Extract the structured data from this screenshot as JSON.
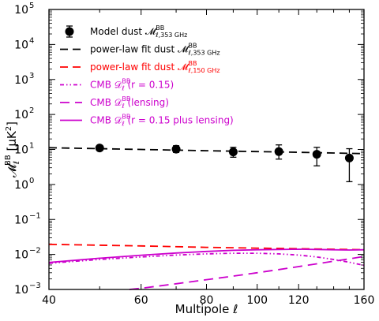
{
  "chart_data": {
    "type": "scatter",
    "title": "",
    "xlabel": "Multipole ℓ",
    "ylabel_main": "𝓜",
    "ylabel_sub": "ℓ",
    "ylabel_sup": "BB",
    "ylabel_unit": " [μK",
    "ylabel_unit_sup": "2",
    "ylabel_close": "]",
    "xscale": "log",
    "yscale": "log",
    "xlim": [
      40,
      160
    ],
    "ylim": [
      0.001,
      100000
    ],
    "grid": false,
    "legend_position": "upper-left",
    "x_ticks": [
      {
        "value": 40,
        "label": "40"
      },
      {
        "value": 60,
        "label": "60"
      },
      {
        "value": 80,
        "label": "80"
      },
      {
        "value": 100,
        "label": "100"
      },
      {
        "value": 120,
        "label": "120"
      },
      {
        "value": 160,
        "label": "160"
      }
    ],
    "y_ticks": [
      {
        "value": 0.001,
        "base": "10",
        "exp": "−3"
      },
      {
        "value": 0.01,
        "base": "10",
        "exp": "−2"
      },
      {
        "value": 0.1,
        "base": "10",
        "exp": "−1"
      },
      {
        "value": 1,
        "base": "10",
        "exp": "0"
      },
      {
        "value": 10,
        "base": "10",
        "exp": "1"
      },
      {
        "value": 100,
        "base": "10",
        "exp": "2"
      },
      {
        "value": 1000,
        "base": "10",
        "exp": "3"
      },
      {
        "value": 10000,
        "base": "10",
        "exp": "4"
      },
      {
        "value": 100000,
        "base": "10",
        "exp": "5"
      }
    ],
    "series": [
      {
        "name": "Model dust 𝓜^BB_ℓ,353 GHz",
        "legend_main": "Model dust 𝓜",
        "legend_sup": "BB",
        "legend_sub": "ℓ,353 GHz",
        "legend_tail": "",
        "kind": "errorbar",
        "color": "#000000",
        "points": [
          {
            "x": 50,
            "y": 11.0,
            "lo": 9.3,
            "hi": 13.0
          },
          {
            "x": 70,
            "y": 10.2,
            "lo": 8.2,
            "hi": 12.8
          },
          {
            "x": 90,
            "y": 8.5,
            "lo": 6.0,
            "hi": 11.5
          },
          {
            "x": 110,
            "y": 8.7,
            "lo": 5.3,
            "hi": 13.5
          },
          {
            "x": 130,
            "y": 7.3,
            "lo": 3.4,
            "hi": 11.5
          },
          {
            "x": 150,
            "y": 5.7,
            "lo": 1.2,
            "hi": 10.5
          }
        ]
      },
      {
        "name": "power-law fit dust 𝓜^BB_ℓ,353 GHz",
        "legend_main": "power-law fit dust 𝓜",
        "legend_sup": "BB",
        "legend_sub": "ℓ,353 GHz",
        "legend_tail": "",
        "kind": "line",
        "dash": "10,6",
        "color": "#000000",
        "x": [
          40,
          60,
          80,
          100,
          120,
          140,
          160
        ],
        "y": [
          11.2,
          10.0,
          9.2,
          8.7,
          8.3,
          7.9,
          7.6
        ]
      },
      {
        "name": "power-law fit dust 𝓜^BB_ℓ,150 GHz",
        "legend_main": "power-law fit dust 𝓜",
        "legend_sup": "BB",
        "legend_sub": "ℓ,150 GHz",
        "legend_tail": "",
        "kind": "line",
        "dash": "10,6",
        "color": "#ff0000",
        "x": [
          40,
          60,
          80,
          100,
          120,
          140,
          160
        ],
        "y": [
          0.0195,
          0.0175,
          0.016,
          0.0152,
          0.0146,
          0.0141,
          0.0137
        ]
      },
      {
        "name": "CMB 𝒟^BB_ℓ (r = 0.15)",
        "legend_main": "CMB 𝒟",
        "legend_sup": "BB",
        "legend_sub": "ℓ",
        "legend_tail": " (r = 0.15)",
        "kind": "line",
        "dash": "5,3,1.5,3,1.5,3",
        "color": "#cc00cc",
        "x": [
          40,
          50,
          60,
          70,
          80,
          90,
          100,
          110,
          120,
          130,
          140,
          150,
          160
        ],
        "y": [
          0.0056,
          0.0072,
          0.0085,
          0.0096,
          0.0104,
          0.0108,
          0.0108,
          0.0104,
          0.0096,
          0.0085,
          0.0072,
          0.006,
          0.0049
        ]
      },
      {
        "name": "CMB 𝒟^BB_ℓ (lensing)",
        "legend_main": "CMB 𝒟",
        "legend_sup": "BB",
        "legend_sub": "ℓ",
        "legend_tail": " (lensing)",
        "kind": "line",
        "dash": "12,7",
        "color": "#cc00cc",
        "x": [
          57,
          60,
          70,
          80,
          90,
          100,
          110,
          120,
          130,
          140,
          150,
          160
        ],
        "y": [
          0.001,
          0.00108,
          0.00145,
          0.0019,
          0.0024,
          0.003,
          0.0037,
          0.0045,
          0.0054,
          0.0064,
          0.0075,
          0.0088
        ]
      },
      {
        "name": "CMB 𝒟^BB_ℓ (r = 0.15 plus lensing)",
        "legend_main": "CMB 𝒟",
        "legend_sup": "BB",
        "legend_sub": "ℓ",
        "legend_tail": " (r = 0.15 plus lensing)",
        "kind": "line",
        "dash": "",
        "color": "#cc00cc",
        "x": [
          40,
          50,
          60,
          70,
          80,
          90,
          100,
          110,
          120,
          130,
          140,
          150,
          160
        ],
        "y": [
          0.0059,
          0.0078,
          0.0095,
          0.011,
          0.0122,
          0.0131,
          0.0136,
          0.0139,
          0.0141,
          0.0139,
          0.0136,
          0.0134,
          0.0136
        ]
      }
    ]
  }
}
